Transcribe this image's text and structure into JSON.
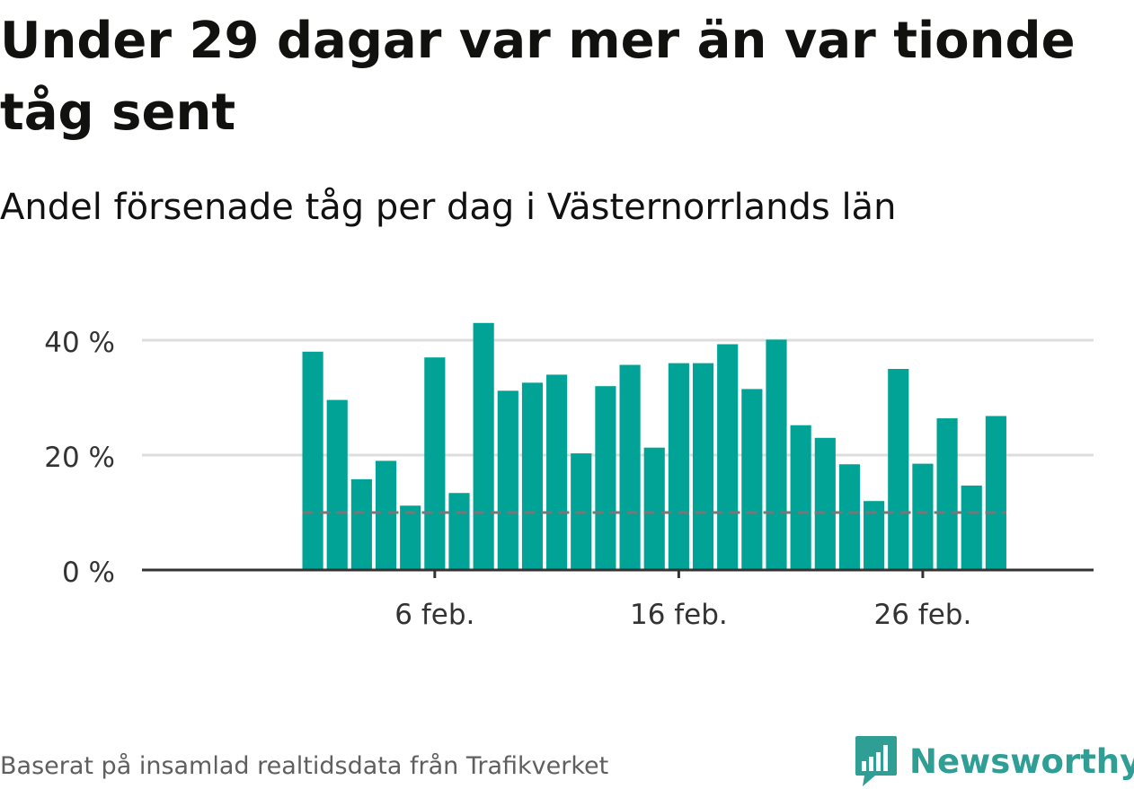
{
  "title": "Under 29 dagar var mer än var tionde tåg sent",
  "subtitle": "Andel försenade tåg per dag i Västernorrlands län",
  "source": "Baserat på insamlad realtidsdata från Trafikverket",
  "brand": {
    "name": "Newsworthy",
    "icon": "newsworthy-logo-icon"
  },
  "colors": {
    "bar": "#00a396",
    "threshold": "#777777",
    "grid": "#dddddd",
    "axis": "#333333",
    "brand": "#2f9e95"
  },
  "chart_data": {
    "type": "bar",
    "x": [
      1,
      2,
      3,
      4,
      5,
      6,
      7,
      8,
      9,
      10,
      11,
      12,
      13,
      14,
      15,
      16,
      17,
      18,
      19,
      20,
      21,
      22,
      23,
      24,
      25,
      26,
      27,
      28,
      29
    ],
    "values": [
      38,
      29.6,
      15.8,
      19,
      11.2,
      37,
      13.4,
      43,
      31.2,
      32.6,
      34,
      20.3,
      32,
      35.7,
      21.3,
      36,
      36,
      39.3,
      31.5,
      40.1,
      25.2,
      23,
      18.4,
      12,
      35,
      18.5,
      26.4,
      14.7,
      26.8
    ],
    "unit": "%",
    "xticks": [
      {
        "x": 6,
        "label": "6 feb."
      },
      {
        "x": 16,
        "label": "16 feb."
      },
      {
        "x": 26,
        "label": "26 feb."
      }
    ],
    "yticks": [
      {
        "y": 0,
        "label": "0 %"
      },
      {
        "y": 20,
        "label": "20 %"
      },
      {
        "y": 40,
        "label": "40 %"
      }
    ],
    "ylim": [
      0,
      40
    ],
    "xlim": [
      -6,
      33
    ],
    "threshold": 10,
    "grid": true,
    "legend": "none"
  }
}
